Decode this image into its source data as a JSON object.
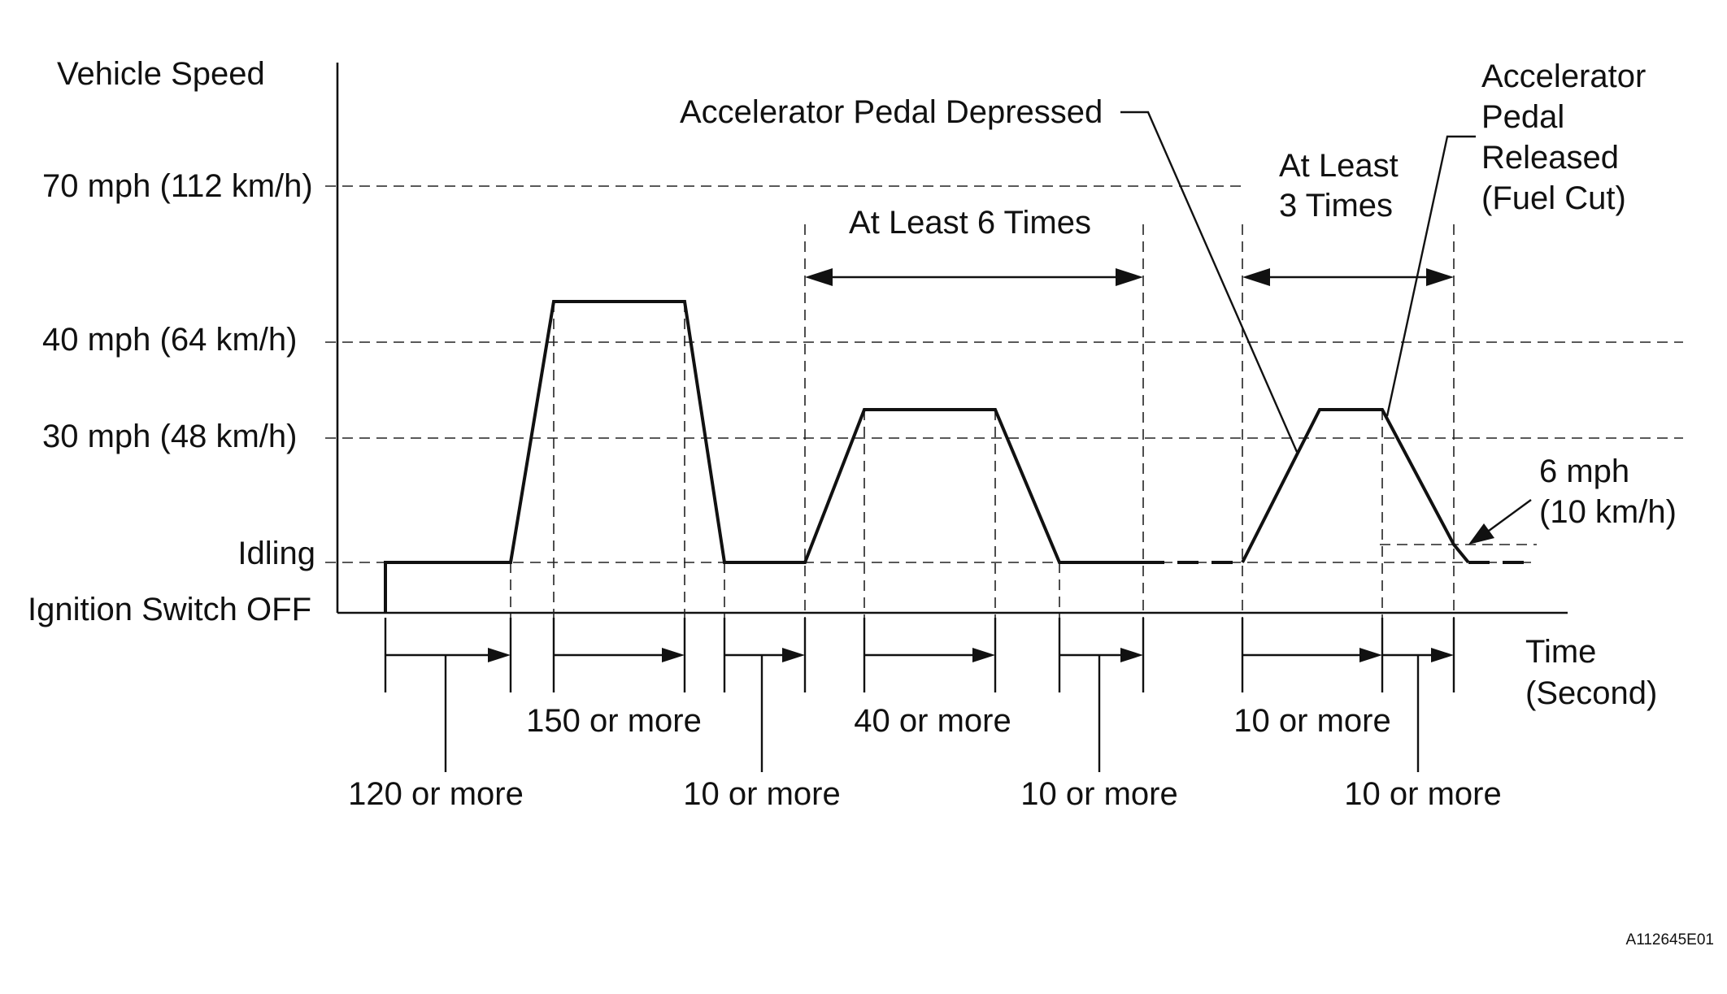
{
  "axes": {
    "y_title": "Vehicle Speed",
    "x_title_line1": "Time",
    "x_title_line2": "(Second)"
  },
  "speed_levels": [
    {
      "label": "70 mph (112 km/h)"
    },
    {
      "label": "40 mph (64 km/h)"
    },
    {
      "label": "30 mph (48 km/h)"
    },
    {
      "label": "Idling"
    },
    {
      "label": "Ignition Switch OFF"
    }
  ],
  "annotations": {
    "pedal_depressed": "Accelerator Pedal Depressed",
    "pedal_released": [
      "Accelerator",
      "Pedal",
      "Released",
      "(Fuel Cut)"
    ],
    "at_least_6": "At Least 6 Times",
    "at_least_3": [
      "At Least",
      "3 Times"
    ],
    "fuel_cut_speed": [
      "6 mph",
      "(10 km/h)"
    ]
  },
  "durations": {
    "d1": "120 or more",
    "d2": "150 or more",
    "d3": "10 or more",
    "d4": "40 or more",
    "d5": "10 or more",
    "d6": "10 or more",
    "d7": "10 or more"
  },
  "figure_id": "A112645E01"
}
